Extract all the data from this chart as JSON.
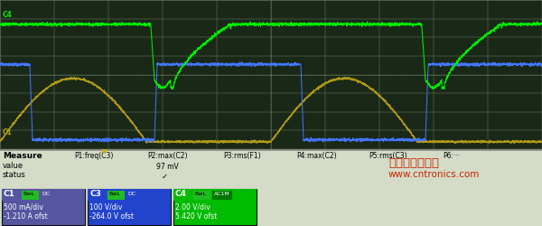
{
  "bg_color": "#d4dcc8",
  "grid_color": "#a8b898",
  "osc_bg": "#1a2818",
  "green_color": "#00ee00",
  "blue_color": "#4477ff",
  "gold_color": "#b09818",
  "watermark_line1": "电子元件技术网",
  "watermark_line2": "www.cntronics.com",
  "p_labels": [
    "P1:freq(C3)",
    "P2:max(C2)",
    "P3:rms(F1)",
    "P4:max(C2)",
    "P5:rms(C3)",
    "P6:···"
  ],
  "p2_value": "97 mV",
  "boxes": [
    {
      "label": "C1",
      "t1": "BwL",
      "t2": "DC",
      "l1": "500 mA/div",
      "l2": "-1.210 A ofst",
      "hdr": "#5555a0",
      "body": "#5555a0",
      "t1c": "#22bb22",
      "t2c": "#5555a0"
    },
    {
      "label": "C3",
      "t1": "BwL",
      "t2": "DC",
      "l1": "100 V/div",
      "l2": "-264.0 V ofst",
      "hdr": "#2244cc",
      "body": "#2244cc",
      "t1c": "#22bb22",
      "t2c": "#2244cc"
    },
    {
      "label": "C4",
      "t1": "BwL",
      "t2": "AC1M",
      "l1": "2.00 V/div",
      "l2": "5.420 V ofst",
      "hdr": "#00bb00",
      "body": "#00bb00",
      "t1c": "#22bb22",
      "t2c": "#007700"
    }
  ]
}
